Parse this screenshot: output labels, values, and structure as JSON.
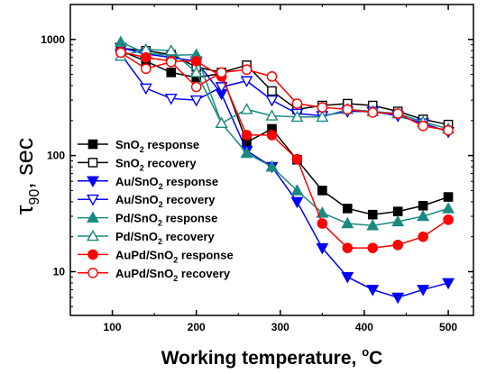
{
  "chart_data": {
    "type": "line",
    "xlabel": {
      "main": "Working temperature, ",
      "unit_sup": "o",
      "unit": "C"
    },
    "ylabel": {
      "symbol": "τ",
      "sub": "90",
      "rest": ", sec"
    },
    "xlim": [
      50,
      530
    ],
    "ylim": [
      4.2,
      2000
    ],
    "yscale": "log",
    "grid": false,
    "legend_position": "center-left",
    "x_ticks": [
      100,
      200,
      300,
      400,
      500
    ],
    "y_ticks": [
      10,
      100,
      1000
    ],
    "series": [
      {
        "label": {
          "pre": "SnO",
          "sub": "2",
          "post": " response"
        },
        "color": "#000000",
        "marker": "square",
        "filled": true,
        "x": [
          110,
          140,
          170,
          200,
          230,
          260,
          290,
          320,
          350,
          380,
          410,
          440,
          470,
          500
        ],
        "y": [
          800,
          650,
          520,
          470,
          510,
          130,
          170,
          92,
          50,
          35,
          31,
          33,
          37,
          44
        ]
      },
      {
        "label": {
          "pre": "SnO",
          "sub": "2",
          "post": " recovery"
        },
        "color": "#000000",
        "marker": "square",
        "filled": false,
        "x": [
          110,
          140,
          170,
          200,
          230,
          260,
          290,
          320,
          350,
          380,
          410,
          440,
          470,
          500
        ],
        "y": [
          840,
          800,
          740,
          580,
          520,
          600,
          360,
          250,
          270,
          280,
          270,
          240,
          205,
          185
        ]
      },
      {
        "label": {
          "pre": "Au/SnO",
          "sub": "2",
          "post": " response"
        },
        "color": "#0000ff",
        "marker": "triangle-down",
        "filled": true,
        "x": [
          110,
          140,
          170,
          200,
          230,
          260,
          290,
          320,
          350,
          380,
          410,
          440,
          470,
          500
        ],
        "y": [
          850,
          750,
          700,
          650,
          340,
          110,
          80,
          40,
          16,
          9,
          7,
          6,
          7,
          8
        ]
      },
      {
        "label": {
          "pre": "Au/SnO",
          "sub": "2",
          "post": " recovery"
        },
        "color": "#0000ff",
        "marker": "triangle-down",
        "filled": false,
        "x": [
          110,
          140,
          170,
          200,
          230,
          260,
          290,
          320,
          350,
          380,
          410,
          440,
          470,
          500
        ],
        "y": [
          750,
          380,
          310,
          300,
          390,
          440,
          300,
          230,
          220,
          240,
          240,
          220,
          190,
          160
        ]
      },
      {
        "label": {
          "pre": "Pd/SnO",
          "sub": "2",
          "post": " response"
        },
        "color": "#1a8a80",
        "marker": "triangle-up",
        "filled": true,
        "x": [
          110,
          140,
          170,
          200,
          230,
          260,
          290,
          320,
          350,
          380,
          410,
          440,
          470,
          500
        ],
        "y": [
          950,
          760,
          730,
          740,
          190,
          105,
          80,
          50,
          32,
          26,
          25,
          27,
          30,
          35
        ]
      },
      {
        "label": {
          "pre": "Pd/SnO",
          "sub": "2",
          "post": " recovery"
        },
        "color": "#1a8a80",
        "marker": "triangle-up",
        "filled": false,
        "x": [
          110,
          140,
          170,
          200,
          230,
          260,
          290,
          320,
          350,
          380,
          410,
          440,
          470,
          500
        ],
        "y": [
          720,
          820,
          800,
          520,
          190,
          250,
          220,
          215,
          215,
          250,
          240,
          230,
          195,
          170
        ]
      },
      {
        "label": {
          "pre": "AuPd/SnO",
          "sub": "2",
          "post": " response"
        },
        "color": "#ff0000",
        "marker": "circle",
        "filled": true,
        "x": [
          110,
          140,
          170,
          200,
          230,
          260,
          290,
          320,
          350,
          380,
          410,
          440,
          470,
          500
        ],
        "y": [
          780,
          700,
          650,
          650,
          480,
          150,
          150,
          93,
          26,
          16,
          16,
          17,
          20,
          28
        ]
      },
      {
        "label": {
          "pre": "AuPd/SnO",
          "sub": "2",
          "post": " recovery"
        },
        "color": "#ff0000",
        "marker": "circle",
        "filled": false,
        "x": [
          110,
          140,
          170,
          200,
          230,
          260,
          290,
          320,
          350,
          380,
          410,
          440,
          470,
          500
        ],
        "y": [
          770,
          560,
          640,
          390,
          520,
          550,
          480,
          280,
          260,
          250,
          235,
          230,
          180,
          165
        ]
      }
    ]
  }
}
